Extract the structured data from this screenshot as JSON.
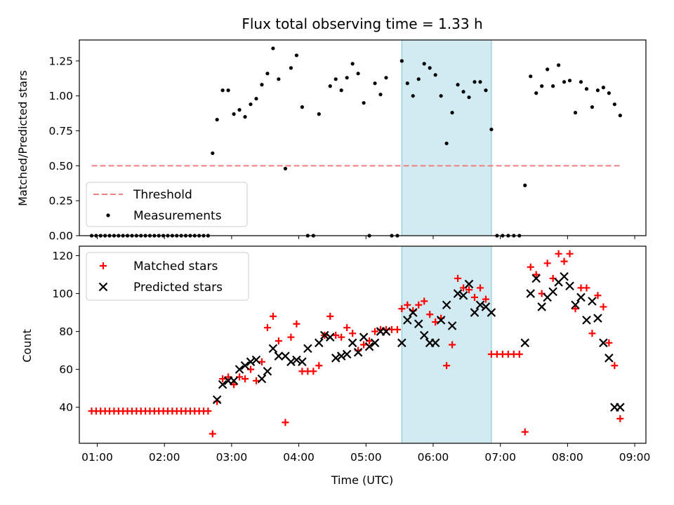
{
  "colors": {
    "shade": "#add8e6",
    "threshold": "#f08080",
    "measurement": "#000000",
    "matched": "#ff0000",
    "predicted": "#000000"
  },
  "chart_data": [
    {
      "type": "scatter",
      "title": "Flux total observing time = 1.33 h",
      "xlabel": "",
      "ylabel": "Matched/Predicted stars",
      "xlim": [
        "00:44",
        "09:10"
      ],
      "ylim": [
        0,
        1.4
      ],
      "yticks": [
        0,
        0.25,
        0.5,
        0.75,
        1.0,
        1.25
      ],
      "ytick_labels": [
        "0.00",
        "0.25",
        "0.50",
        "0.75",
        "1.00",
        "1.25"
      ],
      "shaded_region": [
        "05:32",
        "06:52"
      ],
      "legend_position": "lower-left",
      "threshold": {
        "name": "Threshold",
        "y": 0.5,
        "x": [
          "00:55",
          "08:47"
        ]
      },
      "series": [
        {
          "name": "Measurements",
          "x": [
            "00:55",
            "00:59",
            "01:03",
            "01:07",
            "01:11",
            "01:15",
            "01:19",
            "01:23",
            "01:27",
            "01:31",
            "01:35",
            "01:39",
            "01:43",
            "01:47",
            "01:51",
            "01:55",
            "01:59",
            "02:03",
            "02:07",
            "02:11",
            "02:15",
            "02:19",
            "02:23",
            "02:27",
            "02:31",
            "02:35",
            "02:39",
            "02:43",
            "02:47",
            "02:52",
            "02:57",
            "03:02",
            "03:07",
            "03:12",
            "03:17",
            "03:22",
            "03:27",
            "03:32",
            "03:37",
            "03:42",
            "03:48",
            "03:53",
            "03:58",
            "04:03",
            "04:08",
            "04:13",
            "04:18",
            "04:28",
            "04:33",
            "04:38",
            "04:43",
            "04:48",
            "04:53",
            "04:58",
            "05:03",
            "05:08",
            "05:13",
            "05:18",
            "05:23",
            "05:28",
            "05:32",
            "05:37",
            "05:42",
            "05:47",
            "05:52",
            "05:57",
            "06:02",
            "06:07",
            "06:12",
            "06:17",
            "06:22",
            "06:27",
            "06:32",
            "06:37",
            "06:42",
            "06:47",
            "06:52",
            "06:57",
            "07:02",
            "07:07",
            "07:12",
            "07:17",
            "07:22",
            "07:27",
            "07:32",
            "07:37",
            "07:42",
            "07:47",
            "07:52",
            "07:57",
            "08:02",
            "08:07",
            "08:12",
            "08:17",
            "08:22",
            "08:27",
            "08:32",
            "08:37",
            "08:42",
            "08:47"
          ],
          "y": [
            0,
            0,
            0,
            0,
            0,
            0,
            0,
            0,
            0,
            0,
            0,
            0,
            0,
            0,
            0,
            0,
            0,
            0,
            0,
            0,
            0,
            0,
            0,
            0,
            0,
            0,
            0,
            0.59,
            0.83,
            1.04,
            1.04,
            0.87,
            0.9,
            0.85,
            0.94,
            0.98,
            1.08,
            1.16,
            1.34,
            1.12,
            0.48,
            1.2,
            1.29,
            0.92,
            0,
            0,
            0.87,
            1.07,
            1.12,
            1.04,
            1.13,
            1.23,
            1.16,
            0.95,
            0,
            1.09,
            1.01,
            1.13,
            0,
            0,
            1.25,
            1.09,
            1.0,
            1.12,
            1.23,
            1.2,
            1.15,
            1.0,
            0.66,
            0.88,
            1.08,
            1.03,
            0.99,
            1.1,
            1.1,
            1.04,
            0.76,
            0,
            0,
            0,
            0,
            0,
            0.36,
            1.14,
            1.02,
            1.07,
            1.19,
            1.07,
            1.22,
            1.1,
            1.11,
            0.88,
            1.1,
            1.05,
            0.92,
            1.04,
            1.06,
            1.02,
            0.94,
            0.86
          ]
        }
      ]
    },
    {
      "type": "scatter",
      "title": "",
      "xlabel": "Time (UTC)",
      "ylabel": "Count",
      "xlim": [
        "00:44",
        "09:10"
      ],
      "ylim": [
        21,
        125
      ],
      "xticks": [
        "01:00",
        "02:00",
        "03:00",
        "04:00",
        "05:00",
        "06:00",
        "07:00",
        "08:00",
        "09:00"
      ],
      "yticks": [
        40,
        60,
        80,
        100,
        120
      ],
      "shaded_region": [
        "05:32",
        "06:52"
      ],
      "legend_position": "upper-left",
      "series": [
        {
          "name": "Matched stars",
          "marker": "+",
          "x": [
            "00:55",
            "00:59",
            "01:03",
            "01:07",
            "01:11",
            "01:15",
            "01:19",
            "01:23",
            "01:27",
            "01:31",
            "01:35",
            "01:39",
            "01:43",
            "01:47",
            "01:51",
            "01:55",
            "01:59",
            "02:03",
            "02:07",
            "02:11",
            "02:15",
            "02:19",
            "02:23",
            "02:27",
            "02:31",
            "02:35",
            "02:39",
            "02:43",
            "02:47",
            "02:52",
            "02:57",
            "03:02",
            "03:07",
            "03:12",
            "03:17",
            "03:22",
            "03:27",
            "03:32",
            "03:37",
            "03:42",
            "03:48",
            "03:53",
            "03:58",
            "04:03",
            "04:08",
            "04:13",
            "04:18",
            "04:23",
            "04:28",
            "04:33",
            "04:38",
            "04:43",
            "04:48",
            "04:53",
            "04:58",
            "05:03",
            "05:08",
            "05:13",
            "05:18",
            "05:23",
            "05:28",
            "05:32",
            "05:37",
            "05:42",
            "05:47",
            "05:52",
            "05:57",
            "06:02",
            "06:07",
            "06:12",
            "06:17",
            "06:22",
            "06:27",
            "06:32",
            "06:37",
            "06:42",
            "06:47",
            "06:52",
            "06:57",
            "07:02",
            "07:07",
            "07:12",
            "07:17",
            "07:22",
            "07:27",
            "07:32",
            "07:37",
            "07:42",
            "07:47",
            "07:52",
            "07:57",
            "08:02",
            "08:07",
            "08:12",
            "08:17",
            "08:22",
            "08:27",
            "08:32",
            "08:37",
            "08:42",
            "08:47"
          ],
          "y": [
            38,
            38,
            38,
            38,
            38,
            38,
            38,
            38,
            38,
            38,
            38,
            38,
            38,
            38,
            38,
            38,
            38,
            38,
            38,
            38,
            38,
            38,
            38,
            38,
            38,
            38,
            38,
            26,
            43,
            55,
            56,
            52,
            56,
            55,
            60,
            54,
            64,
            82,
            88,
            75,
            32,
            77,
            84,
            59,
            59,
            59,
            62,
            78,
            88,
            78,
            77,
            82,
            79,
            70,
            73,
            75,
            80,
            81,
            81,
            81,
            81,
            92,
            94,
            91,
            94,
            96,
            89,
            85,
            87,
            62,
            73,
            108,
            103,
            102,
            98,
            103,
            97,
            68,
            68,
            68,
            68,
            68,
            68,
            27,
            114,
            110,
            100,
            116,
            108,
            121,
            117,
            121,
            92,
            103,
            103,
            79,
            99,
            93,
            74,
            62,
            34
          ]
        },
        {
          "name": "Predicted stars",
          "marker": "x",
          "x": [
            "02:47",
            "02:52",
            "02:57",
            "03:02",
            "03:07",
            "03:12",
            "03:17",
            "03:22",
            "03:27",
            "03:32",
            "03:37",
            "03:42",
            "03:48",
            "03:53",
            "03:58",
            "04:03",
            "04:08",
            "04:18",
            "04:23",
            "04:28",
            "04:33",
            "04:38",
            "04:43",
            "04:48",
            "04:53",
            "04:58",
            "05:03",
            "05:08",
            "05:13",
            "05:18",
            "05:32",
            "05:37",
            "05:42",
            "05:47",
            "05:52",
            "05:57",
            "06:02",
            "06:07",
            "06:12",
            "06:17",
            "06:22",
            "06:27",
            "06:32",
            "06:37",
            "06:42",
            "06:47",
            "06:52",
            "07:22",
            "07:27",
            "07:32",
            "07:37",
            "07:42",
            "07:47",
            "07:52",
            "07:57",
            "08:02",
            "08:07",
            "08:12",
            "08:17",
            "08:22",
            "08:27",
            "08:32",
            "08:37",
            "08:42",
            "08:47"
          ],
          "y": [
            44,
            52,
            54,
            54,
            60,
            62,
            64,
            65,
            55,
            59,
            71,
            67,
            67,
            64,
            65,
            64,
            71,
            74,
            78,
            77,
            66,
            67,
            68,
            74,
            69,
            77,
            72,
            74,
            80,
            80,
            74,
            86,
            90,
            84,
            78,
            74,
            74,
            86,
            94,
            83,
            100,
            99,
            105,
            90,
            94,
            93,
            90,
            74,
            100,
            108,
            93,
            98,
            101,
            106,
            109,
            104,
            94,
            98,
            86,
            96,
            87,
            74,
            66,
            40,
            40
          ]
        }
      ]
    }
  ]
}
